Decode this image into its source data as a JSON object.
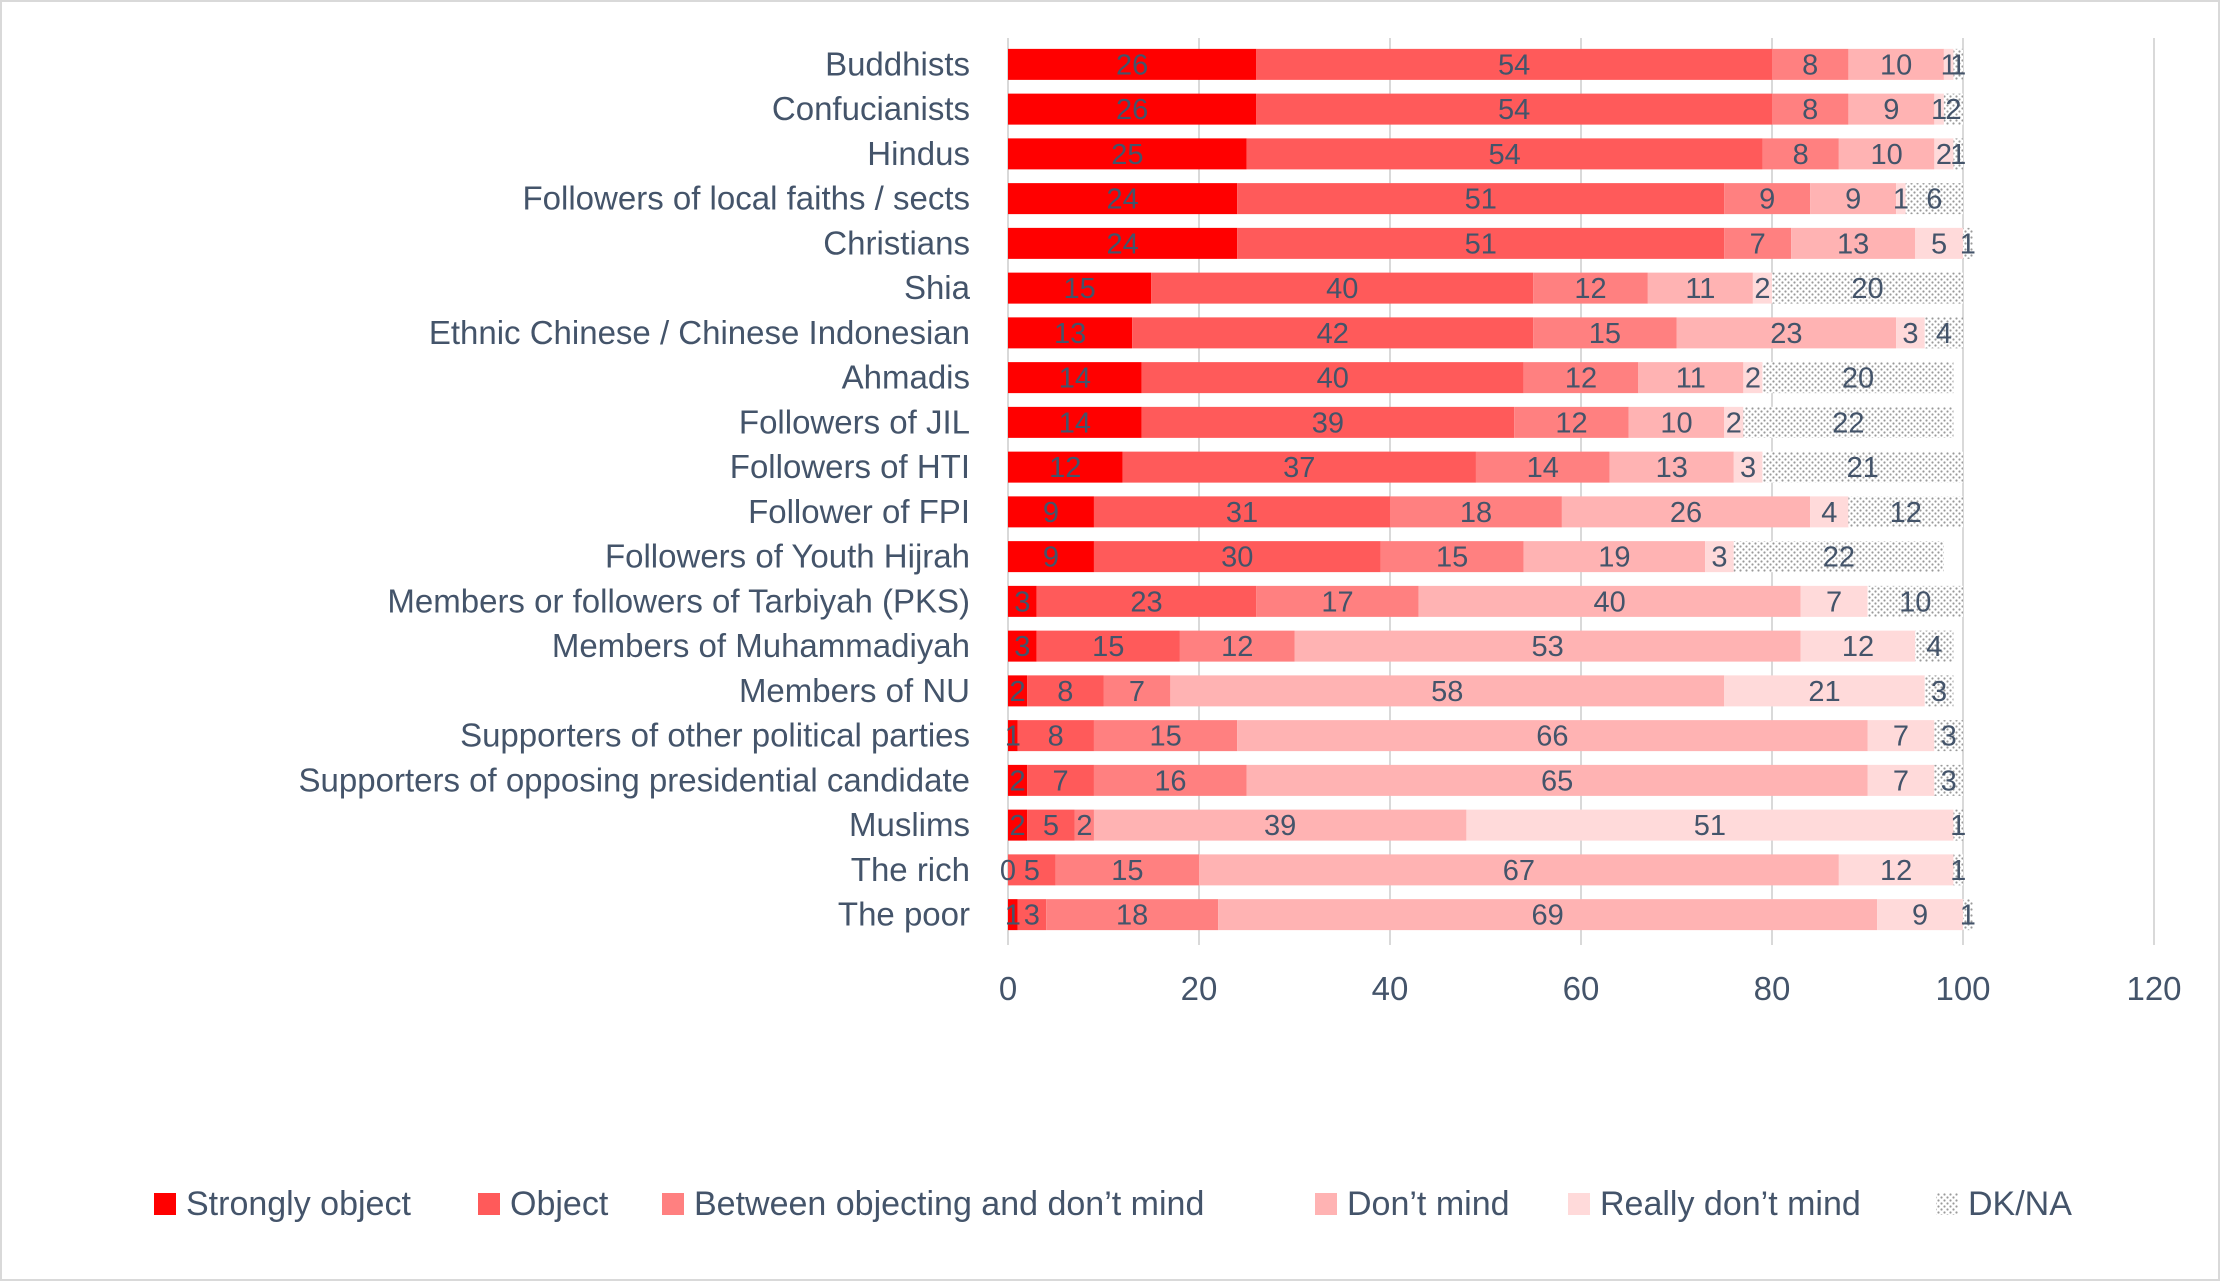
{
  "chart_data": {
    "type": "bar",
    "orientation": "horizontal",
    "stacked": true,
    "title": "",
    "xlabel": "",
    "ylabel": "",
    "xlim": [
      0,
      120
    ],
    "xticks": [
      0,
      20,
      40,
      60,
      80,
      100,
      120
    ],
    "grid": true,
    "legend_position": "bottom",
    "categories": [
      "Buddhists",
      "Confucianists",
      "Hindus",
      "Followers of local faiths / sects",
      "Christians",
      "Shia",
      "Ethnic Chinese / Chinese Indonesian",
      "Ahmadis",
      "Followers of JIL",
      "Followers of HTI",
      "Follower of FPI",
      "Followers of Youth Hijrah",
      "Members or followers of Tarbiyah (PKS)",
      "Members of Muhammadiyah",
      "Members of NU",
      "Supporters of other political parties",
      "Supporters of opposing presidential candidate",
      "Muslims",
      "The rich",
      "The poor"
    ],
    "series": [
      {
        "name": "Strongly object",
        "color": "#ff0000",
        "values": [
          26,
          26,
          25,
          24,
          24,
          15,
          13,
          14,
          14,
          12,
          9,
          9,
          3,
          3,
          2,
          1,
          2,
          2,
          0,
          1
        ]
      },
      {
        "name": "Object",
        "color": "#ff5a5a",
        "values": [
          54,
          54,
          54,
          51,
          51,
          40,
          42,
          40,
          39,
          37,
          31,
          30,
          23,
          15,
          8,
          8,
          7,
          5,
          5,
          3
        ]
      },
      {
        "name": "Between objecting and don’t mind",
        "color": "#ff8080",
        "values": [
          8,
          8,
          8,
          9,
          7,
          12,
          15,
          12,
          12,
          14,
          18,
          15,
          17,
          12,
          7,
          15,
          16,
          2,
          15,
          18
        ]
      },
      {
        "name": "Don’t mind",
        "color": "#ffb3b3",
        "values": [
          10,
          9,
          10,
          9,
          13,
          11,
          23,
          11,
          10,
          13,
          26,
          19,
          40,
          53,
          58,
          66,
          65,
          39,
          67,
          69
        ]
      },
      {
        "name": "Really don’t mind",
        "color": "#ffdada",
        "values": [
          1,
          1,
          2,
          1,
          5,
          2,
          3,
          2,
          2,
          3,
          4,
          3,
          7,
          12,
          21,
          7,
          7,
          51,
          12,
          9
        ]
      },
      {
        "name": "DK/NA",
        "color": "pattern",
        "values": [
          1,
          2,
          1,
          6,
          1,
          20,
          4,
          20,
          22,
          21,
          12,
          22,
          10,
          4,
          3,
          3,
          3,
          1,
          1,
          1
        ]
      }
    ]
  }
}
